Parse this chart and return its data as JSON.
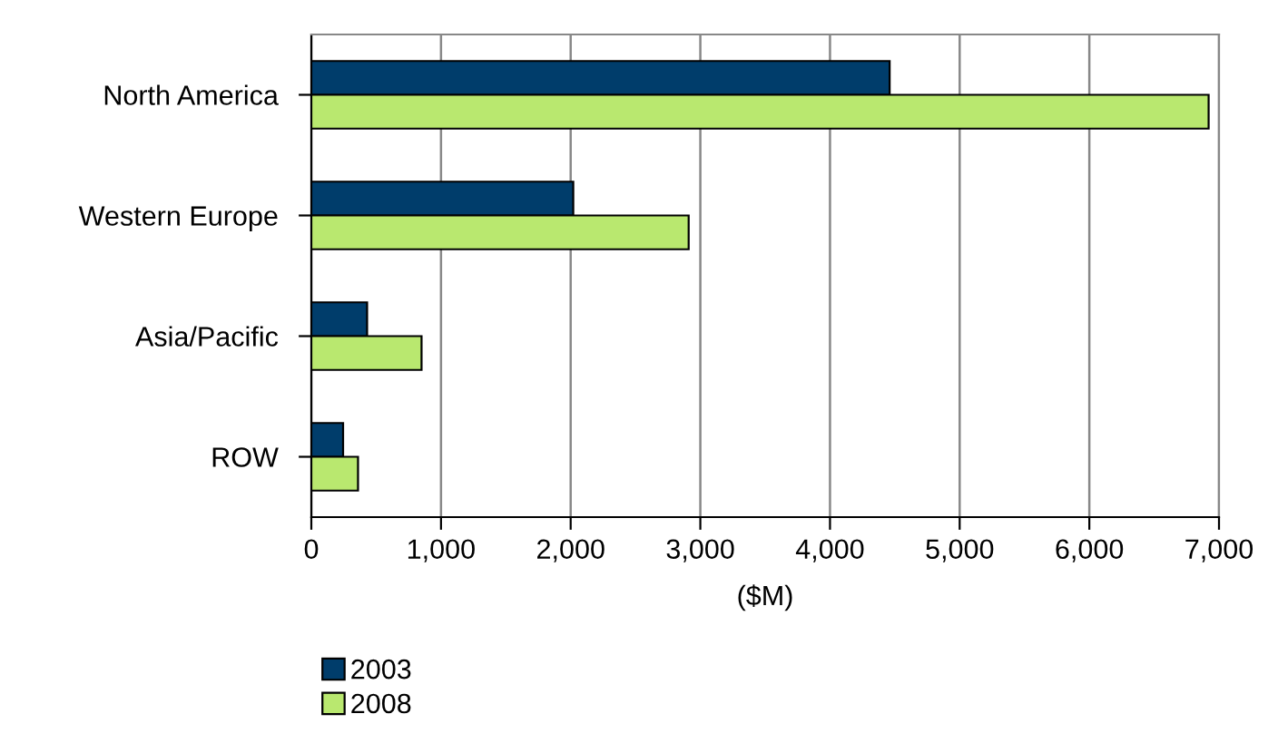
{
  "chart_data": {
    "type": "bar",
    "orientation": "horizontal",
    "xlabel": "($M)",
    "categories": [
      "North America",
      "Western Europe",
      "Asia/Pacific",
      "ROW"
    ],
    "series": [
      {
        "name": "2003",
        "color": "#003d6b",
        "values": [
          4460,
          2020,
          430,
          245
        ]
      },
      {
        "name": "2008",
        "color": "#b9e86f",
        "values": [
          6920,
          2910,
          850,
          360
        ]
      }
    ],
    "xlim": [
      0,
      7000
    ],
    "xticks": [
      {
        "value": 0,
        "label": "0"
      },
      {
        "value": 1000,
        "label": "1,000"
      },
      {
        "value": 2000,
        "label": "2,000"
      },
      {
        "value": 3000,
        "label": "3,000"
      },
      {
        "value": 4000,
        "label": "4,000"
      },
      {
        "value": 5000,
        "label": "5,000"
      },
      {
        "value": 6000,
        "label": "6,000"
      },
      {
        "value": 7000,
        "label": "7,000"
      }
    ],
    "grid": "x",
    "legend": "bottom"
  }
}
